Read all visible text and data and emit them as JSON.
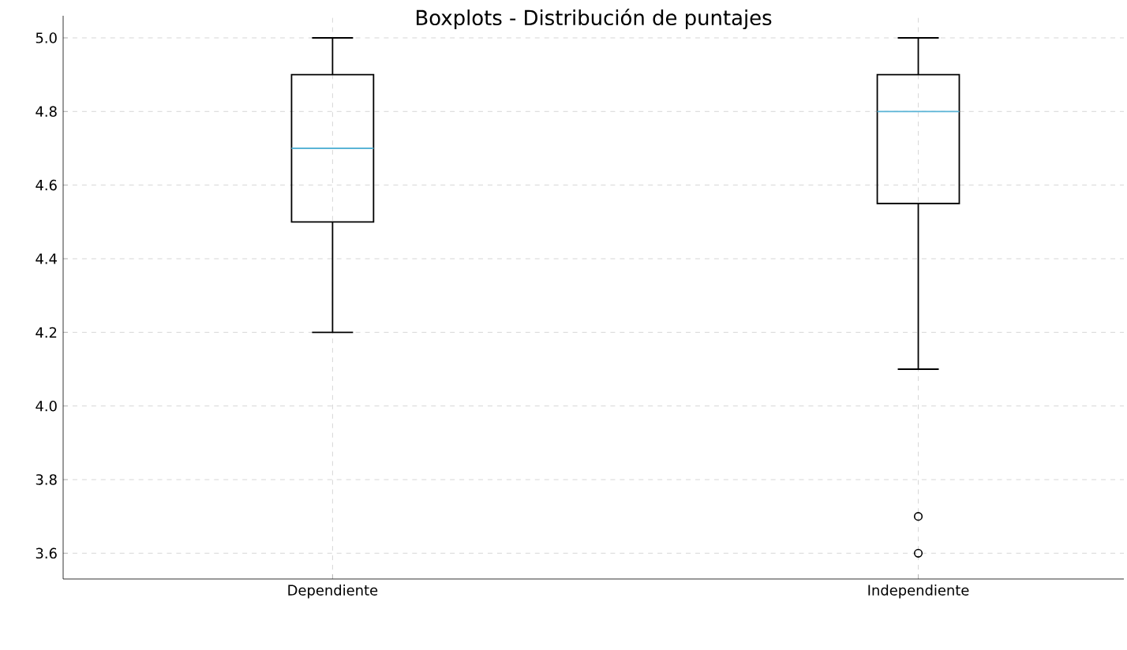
{
  "chart_data": {
    "type": "box",
    "title": "Boxplots - Distribución de puntajes",
    "categories": [
      "Dependiente",
      "Independiente"
    ],
    "boxes": [
      {
        "low": 4.2,
        "q1": 4.5,
        "median": 4.7,
        "q3": 4.9,
        "high": 5.0
      },
      {
        "low": 4.1,
        "q1": 4.55,
        "median": 4.8,
        "q3": 4.9,
        "high": 5.0,
        "outliers": [
          3.7,
          3.6
        ]
      }
    ],
    "color": "#000000",
    "ylim": [
      3.53,
      5.06
    ],
    "yticks": [
      3.6,
      3.8,
      {
        "value": 4.0,
        "label": "4.0"
      },
      4.2,
      4.4,
      4.6,
      4.8,
      {
        "value": 5.0,
        "label": "5.0"
      }
    ],
    "grid": true
  }
}
